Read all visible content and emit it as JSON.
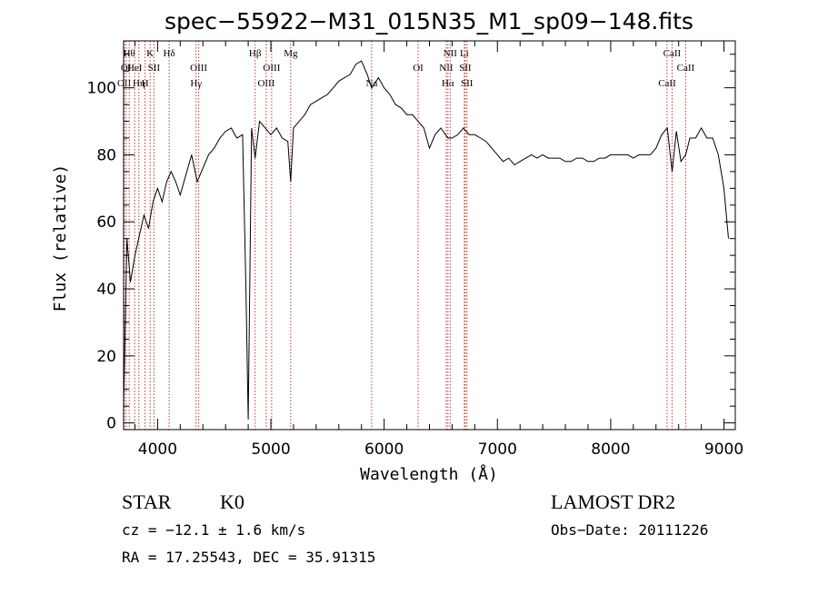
{
  "chart_data": {
    "type": "line",
    "title": "spec−55922−M31_015N35_M1_sp09−148.fits",
    "xlabel": "Wavelength (Å)",
    "ylabel": "Flux (relative)",
    "xlim": [
      3700,
      9100
    ],
    "ylim": [
      -2,
      114
    ],
    "xticks": [
      4000,
      5000,
      6000,
      7000,
      8000,
      9000
    ],
    "yticks": [
      0,
      20,
      40,
      60,
      80,
      100
    ],
    "grid": false,
    "series": [
      {
        "x": [
          3700,
          3730,
          3760,
          3800,
          3840,
          3880,
          3920,
          3960,
          4000,
          4040,
          4080,
          4120,
          4160,
          4200,
          4250,
          4300,
          4350,
          4400,
          4450,
          4500,
          4550,
          4600,
          4650,
          4700,
          4750,
          4780,
          4800,
          4830,
          4861,
          4900,
          4950,
          5000,
          5050,
          5100,
          5150,
          5175,
          5200,
          5250,
          5300,
          5350,
          5400,
          5450,
          5500,
          5550,
          5600,
          5650,
          5700,
          5750,
          5800,
          5850,
          5890,
          5950,
          6000,
          6050,
          6100,
          6150,
          6200,
          6250,
          6300,
          6350,
          6400,
          6450,
          6500,
          6563,
          6600,
          6650,
          6700,
          6750,
          6800,
          6850,
          6900,
          6950,
          7000,
          7050,
          7100,
          7150,
          7200,
          7250,
          7300,
          7350,
          7400,
          7450,
          7500,
          7550,
          7600,
          7650,
          7700,
          7750,
          7800,
          7850,
          7900,
          7950,
          8000,
          8050,
          8100,
          8150,
          8200,
          8250,
          8300,
          8350,
          8400,
          8450,
          8500,
          8542,
          8580,
          8620,
          8662,
          8700,
          8750,
          8800,
          8850,
          8900,
          8950,
          9000,
          9040
        ],
        "y": [
          5,
          55,
          42,
          50,
          56,
          62,
          58,
          66,
          70,
          66,
          72,
          75,
          72,
          68,
          74,
          80,
          72,
          76,
          80,
          82,
          85,
          87,
          88,
          85,
          86,
          40,
          1,
          88,
          79,
          90,
          88,
          86,
          88,
          85,
          84,
          72,
          88,
          90,
          92,
          95,
          96,
          97,
          98,
          100,
          102,
          103,
          104,
          107,
          108,
          104,
          100,
          103,
          100,
          98,
          95,
          94,
          92,
          92,
          90,
          88,
          82,
          86,
          88,
          85,
          85,
          86,
          88,
          86,
          86,
          85,
          84,
          82,
          80,
          78,
          79,
          77,
          78,
          79,
          80,
          79,
          80,
          79,
          79,
          79,
          78,
          78,
          79,
          79,
          78,
          78,
          79,
          79,
          80,
          80,
          80,
          80,
          79,
          80,
          80,
          80,
          82,
          86,
          88,
          75,
          87,
          78,
          80,
          85,
          85,
          88,
          85,
          85,
          80,
          70,
          55
        ]
      }
    ],
    "lines": [
      {
        "wave": 3705,
        "row": 3,
        "label": "OII"
      },
      {
        "wave": 3722,
        "row": 2,
        "label": "OI"
      },
      {
        "wave": 3750,
        "row": 1,
        "label": "Hθ"
      },
      {
        "wave": 3798,
        "row": 2,
        "label": "HeI"
      },
      {
        "wave": 3835,
        "row": 3,
        "label": "Hη"
      },
      {
        "wave": 3889,
        "row": 3,
        "label": "H"
      },
      {
        "wave": 3934,
        "row": 1,
        "label": "K"
      },
      {
        "wave": 3968,
        "row": 2,
        "label": "SII"
      },
      {
        "wave": 4102,
        "row": 1,
        "label": "Hδ"
      },
      {
        "wave": 4340,
        "row": 3,
        "label": "Hγ"
      },
      {
        "wave": 4363,
        "row": 2,
        "label": "OIII"
      },
      {
        "wave": 4861,
        "row": 1,
        "label": "Hβ"
      },
      {
        "wave": 4959,
        "row": 3,
        "label": "OIII"
      },
      {
        "wave": 5007,
        "row": 2,
        "label": "OIII"
      },
      {
        "wave": 5175,
        "row": 1,
        "label": "Mg"
      },
      {
        "wave": 5890,
        "row": 3,
        "label": "Na"
      },
      {
        "wave": 6300,
        "row": 2,
        "label": "OI"
      },
      {
        "wave": 6548,
        "row": 2,
        "label": "NII"
      },
      {
        "wave": 6563,
        "row": 3,
        "label": "Hα"
      },
      {
        "wave": 6583,
        "row": 1,
        "label": "NII"
      },
      {
        "wave": 6708,
        "row": 1,
        "label": "Li"
      },
      {
        "wave": 6716,
        "row": 2,
        "label": "SII"
      },
      {
        "wave": 6731,
        "row": 3,
        "label": "SII"
      },
      {
        "wave": 8498,
        "row": 3,
        "label": "CaII"
      },
      {
        "wave": 8542,
        "row": 1,
        "label": "CaII"
      },
      {
        "wave": 8662,
        "row": 2,
        "label": "CaII"
      }
    ]
  },
  "footer": {
    "class": "STAR",
    "subclass": "K0",
    "cz": "cz = −12.1 ± 1.6 km/s",
    "coords": "RA =  17.25543, DEC =  35.91315",
    "survey": "LAMOST DR2",
    "obs_date": "Obs−Date: 20111226"
  }
}
